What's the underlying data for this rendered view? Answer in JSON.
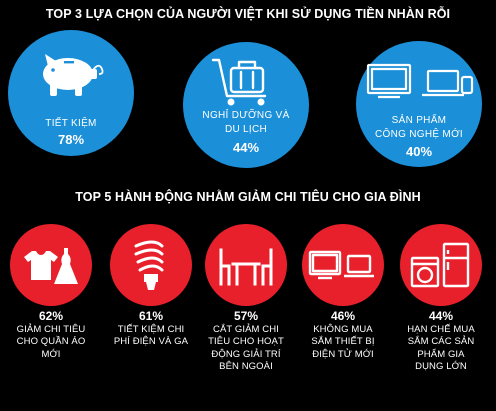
{
  "section1": {
    "title": "TOP 3 LỰA CHỌN CỦA NGƯỜI VIỆT KHI SỬ DỤNG TIỀN NHÀN RỖI",
    "items": [
      {
        "label_lines": [
          "TIẾT KIỆM"
        ],
        "percent": "78%",
        "icon": "piggy-bank-icon"
      },
      {
        "label_lines": [
          "NGHỈ DƯỠNG VÀ",
          "DU LỊCH"
        ],
        "percent": "44%",
        "icon": "luggage-cart-icon"
      },
      {
        "label_lines": [
          "SẢN PHẨM",
          "CÔNG NGHỆ MỚI"
        ],
        "percent": "40%",
        "icon": "tv-laptop-phone-icon"
      }
    ]
  },
  "section2": {
    "title": "TOP 5 HÀNH ĐỘNG NHẰM GIẢM CHI TIÊU CHO GIA ĐÌNH",
    "items": [
      {
        "percent": "62%",
        "label_lines": [
          "GIẢM CHI TIÊU",
          "CHO QUẦN ÁO",
          "MỚI"
        ],
        "icon": "clothes-icon"
      },
      {
        "percent": "61%",
        "label_lines": [
          "TIẾT KIỆM CHI",
          "PHÍ ĐIỆN VÀ GA"
        ],
        "icon": "light-bulb-icon"
      },
      {
        "percent": "57%",
        "label_lines": [
          "CẮT GIẢM CHI",
          "TIÊU CHO HOẠT",
          "ĐỘNG GIẢI TRÍ",
          "BÊN NGOÀI"
        ],
        "icon": "dining-table-icon"
      },
      {
        "percent": "46%",
        "label_lines": [
          "KHÔNG MUA",
          "SẮM THIẾT BỊ",
          "ĐIỆN TỬ MỚI"
        ],
        "icon": "tv-laptop-icon"
      },
      {
        "percent": "44%",
        "label_lines": [
          "HẠN CHẾ MUA",
          "SẮM CÁC SẢN",
          "PHẨM GIA",
          "DỤNG LỚN"
        ],
        "icon": "washer-fridge-icon"
      }
    ]
  },
  "colors": {
    "background": "#000000",
    "blue": "#1b8fd8",
    "red": "#e8202b",
    "text": "#ffffff"
  }
}
